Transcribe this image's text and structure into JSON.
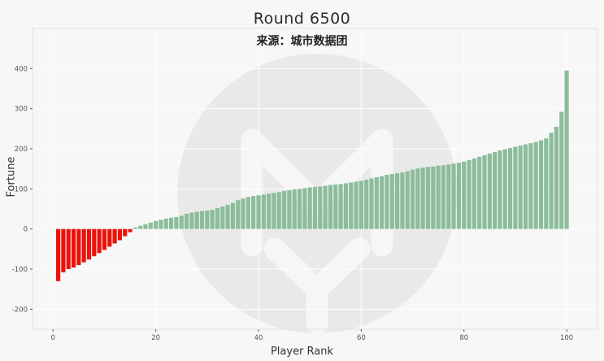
{
  "chart_data": {
    "type": "bar",
    "title": "Round 6500",
    "subtitle": "来源：城市数据团",
    "xlabel": "Player Rank",
    "ylabel": "Fortune",
    "x_start": 1,
    "xlim": [
      -4,
      106
    ],
    "ylim": [
      -250,
      500
    ],
    "x_ticks": [
      0,
      20,
      40,
      60,
      80,
      100
    ],
    "y_ticks": [
      -200,
      -100,
      0,
      100,
      200,
      300,
      400
    ],
    "grid": true,
    "legend": false,
    "colors": {
      "negative": "#ea130b",
      "positive": "#8cbd9b",
      "background": "#f7f7f7",
      "grid": "#ffffff",
      "border": "#e2e2e2",
      "tick_text": "#555555",
      "watermark": "#e9e9e9",
      "watermark_glyph": "#f6f6f6"
    },
    "values": [
      -130,
      -108,
      -100,
      -96,
      -90,
      -83,
      -76,
      -68,
      -60,
      -52,
      -44,
      -36,
      -28,
      -18,
      -8,
      4,
      8,
      12,
      16,
      20,
      23,
      26,
      28,
      30,
      33,
      38,
      41,
      43,
      45,
      46,
      48,
      52,
      56,
      60,
      65,
      72,
      76,
      80,
      82,
      84,
      86,
      88,
      90,
      92,
      95,
      97,
      99,
      100,
      102,
      104,
      105,
      106,
      108,
      110,
      111,
      112,
      114,
      116,
      118,
      120,
      123,
      126,
      129,
      132,
      135,
      137,
      139,
      141,
      144,
      148,
      151,
      153,
      155,
      156,
      158,
      159,
      161,
      163,
      165,
      168,
      172,
      176,
      180,
      184,
      188,
      192,
      196,
      199,
      202,
      205,
      208,
      211,
      214,
      217,
      221,
      226,
      240,
      255,
      292,
      395
    ]
  }
}
